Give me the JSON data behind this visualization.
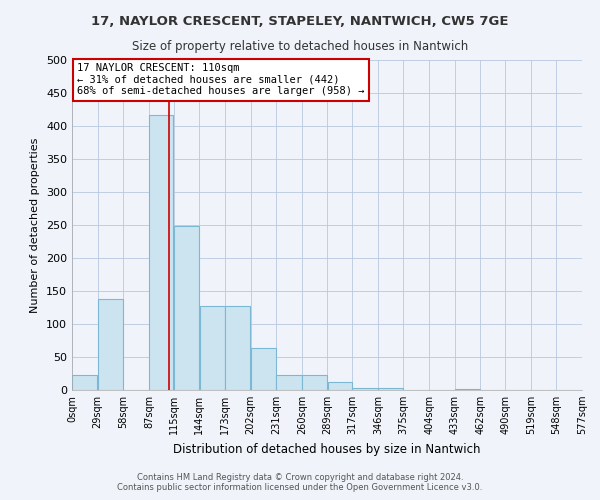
{
  "title1": "17, NAYLOR CRESCENT, STAPELEY, NANTWICH, CW5 7GE",
  "title2": "Size of property relative to detached houses in Nantwich",
  "xlabel": "Distribution of detached houses by size in Nantwich",
  "ylabel": "Number of detached properties",
  "footnote1": "Contains HM Land Registry data © Crown copyright and database right 2024.",
  "footnote2": "Contains public sector information licensed under the Open Government Licence v3.0.",
  "annotation_line1": "17 NAYLOR CRESCENT: 110sqm",
  "annotation_line2": "← 31% of detached houses are smaller (442)",
  "annotation_line3": "68% of semi-detached houses are larger (958) →",
  "property_size_sqm": 110,
  "bin_edges": [
    0,
    29,
    58,
    87,
    115,
    144,
    173,
    202,
    231,
    260,
    289,
    317,
    346,
    375,
    404,
    433,
    462,
    490,
    519,
    548,
    577
  ],
  "bar_heights": [
    22,
    138,
    0,
    416,
    248,
    127,
    127,
    63,
    22,
    22,
    12,
    3,
    3,
    0,
    0,
    2,
    0,
    0,
    0,
    0
  ],
  "bar_color": "#cce4f0",
  "bar_edge_color": "#7ab8d4",
  "property_line_color": "#cc0000",
  "annotation_box_color": "#cc0000",
  "ylim": [
    0,
    500
  ],
  "yticks": [
    0,
    50,
    100,
    150,
    200,
    250,
    300,
    350,
    400,
    450,
    500
  ],
  "bg_color": "#f0f4fa",
  "grid_color": "#b8c8e0"
}
